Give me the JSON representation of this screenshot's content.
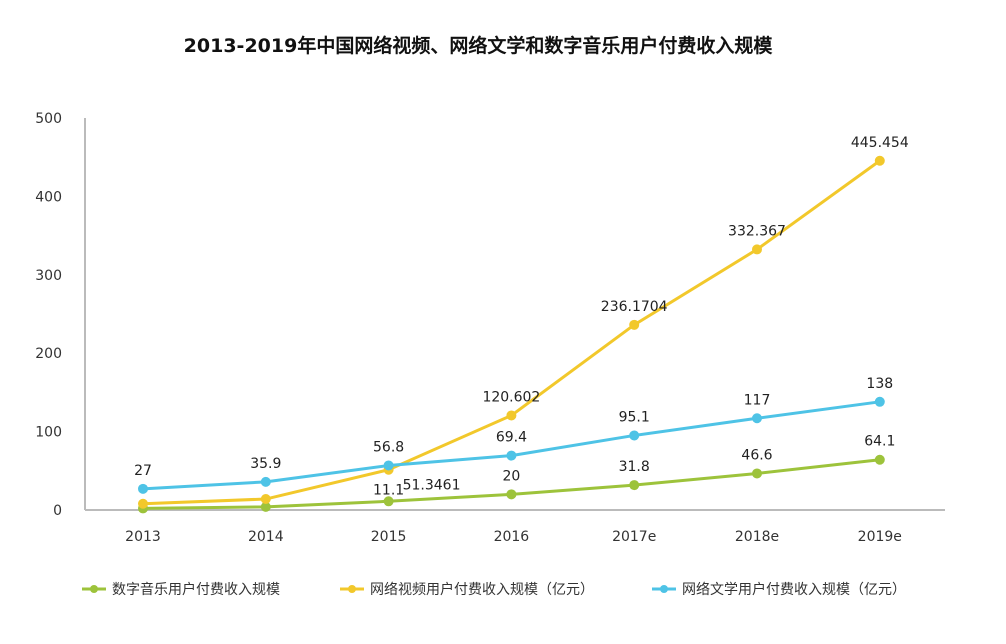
{
  "chart_data": {
    "type": "line",
    "title": "2013-2019年中国网络视频、网络文学和数字音乐用户付费收入规模",
    "categories": [
      "2013",
      "2014",
      "2015",
      "2016",
      "2017e",
      "2018e",
      "2019e"
    ],
    "ylim": [
      0,
      500
    ],
    "yticks": [
      0,
      100,
      200,
      300,
      400,
      500
    ],
    "grid": false,
    "legend_position": "bottom",
    "series": [
      {
        "name": "数字音乐用户付费收入规模",
        "color": "#9dc33b",
        "values": [
          2,
          4,
          11.1,
          20,
          31.8,
          46.6,
          64.1
        ],
        "labels": [
          "",
          "",
          "11.1",
          "20",
          "31.8",
          "46.6",
          "64.1"
        ]
      },
      {
        "name": "网络视频用户付费收入规模（亿元）",
        "color": "#f2c82b",
        "values": [
          8,
          14,
          51.3461,
          120.602,
          236.1704,
          332.367,
          445.454
        ],
        "labels": [
          "",
          "",
          "51.3461",
          "120.602",
          "236.1704",
          "332.367",
          "445.454"
        ]
      },
      {
        "name": "网络文学用户付费收入规模（亿元）",
        "color": "#4ec3e6",
        "values": [
          27,
          35.9,
          56.8,
          69.4,
          95.1,
          117,
          138
        ],
        "labels": [
          "27",
          "35.9",
          "56.8",
          "69.4",
          "95.1",
          "117",
          "138"
        ]
      }
    ]
  }
}
